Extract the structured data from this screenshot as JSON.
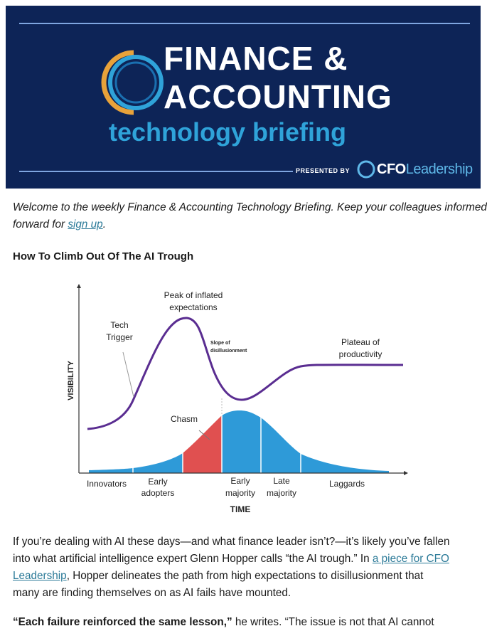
{
  "banner": {
    "line1": "FINANCE &",
    "line2": "ACCOUNTING",
    "line3": "technology briefing",
    "presented_by": "PRESENTED BY",
    "sponsor_a": "CFO",
    "sponsor_b": "Leadership",
    "colors": {
      "background": "#0d2457",
      "accent": "#2fa3d9",
      "logo_orange": "#e8a23a"
    }
  },
  "intro": {
    "line1": "Welcome to the weekly Finance & Accounting Technology Briefing. Keep your colleagues informed—",
    "line2_pre": "forward for ",
    "link": "sign up",
    "line2_post": "."
  },
  "heading": "How To Climb Out Of The AI Trough",
  "diagram": {
    "y_axis": "VISIBILITY",
    "x_axis": "TIME",
    "peak_1": "Peak of inflated",
    "peak_2": "expectations",
    "trigger_1": "Tech",
    "trigger_2": "Trigger",
    "slope_1": "Slope of",
    "slope_2": "disillusionment",
    "plateau_1": "Plateau of",
    "plateau_2": "productivity",
    "chasm": "Chasm",
    "segments": [
      {
        "l1": "Innovators",
        "l2": ""
      },
      {
        "l1": "Early",
        "l2": "adopters"
      },
      {
        "l1": "Early",
        "l2": "majority"
      },
      {
        "l1": "Late",
        "l2": "majority"
      },
      {
        "l1": "Laggards",
        "l2": ""
      }
    ],
    "colors": {
      "curve": "#5a2d91",
      "bell": "#2e9ad8",
      "chasm": "#e05050"
    }
  },
  "body": {
    "l1": "If you’re dealing with AI these days—and what finance leader isn’t?—it’s likely you’ve fallen",
    "l2_pre": "into what artificial intelligence expert Glenn Hopper calls “the AI trough.” In ",
    "l2_link": "a piece for CFO",
    "l3_link": "Leadership",
    "l3_post": ", Hopper delineates the path from high expectations to disillusionment that",
    "l4": "many are finding themselves on as AI fails have mounted.",
    "q_bold": "“Each failure reinforced the same lesson,”",
    "q_rest": " he writes. “The issue is not that AI cannot"
  }
}
